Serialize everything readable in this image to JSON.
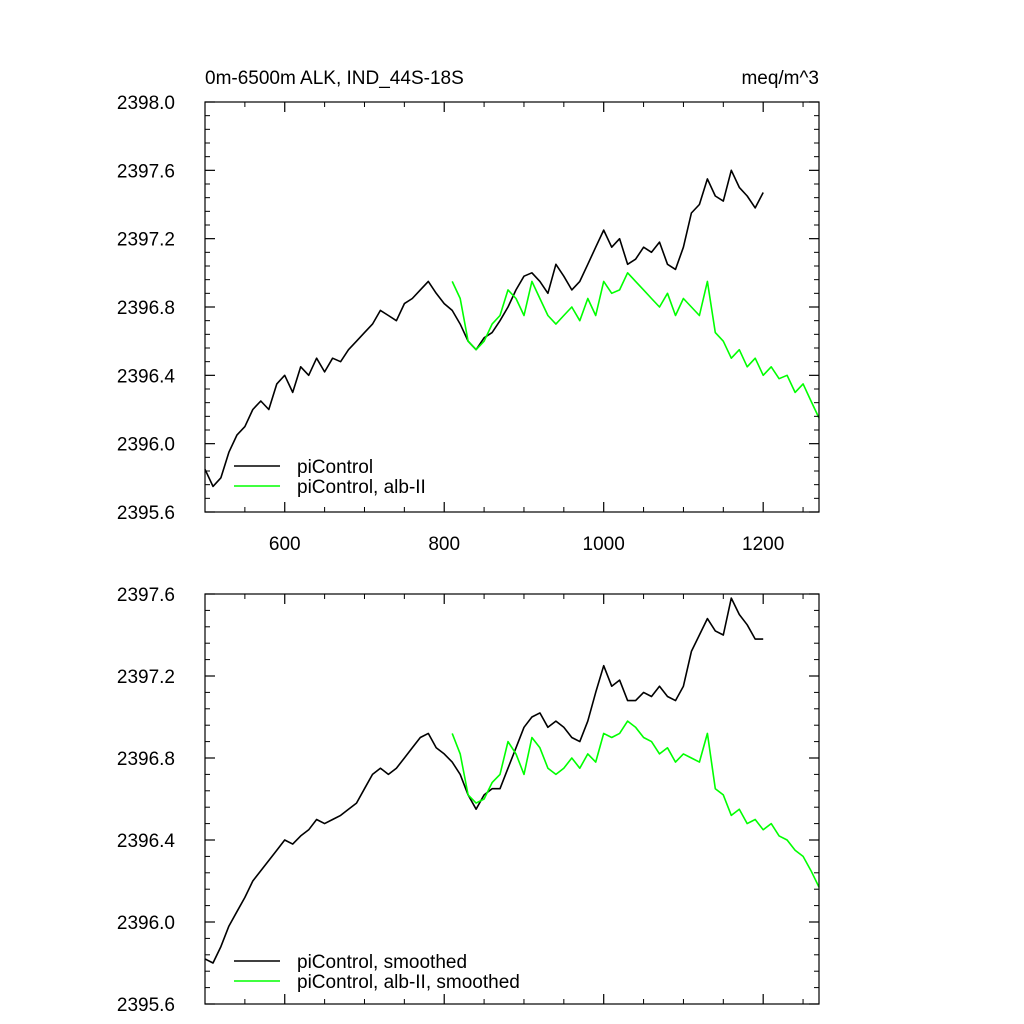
{
  "chart_data": [
    {
      "type": "line",
      "title": "0m-6500m ALK, IND_44S-18S",
      "units": "meq/m^3",
      "xlim": [
        500,
        1270
      ],
      "ylim": [
        2395.6,
        2398.0
      ],
      "xticks": [
        600,
        800,
        1000,
        1200
      ],
      "xtick_labels": [
        "600",
        "800",
        "1000",
        "1200"
      ],
      "yticks": [
        2395.6,
        2396.0,
        2396.4,
        2396.8,
        2397.2,
        2397.6,
        2398.0
      ],
      "ytick_labels": [
        "2395.6",
        "2396.0",
        "2396.4",
        "2396.8",
        "2397.2",
        "2397.6",
        "2398.0"
      ],
      "grid": false,
      "legend_position": "bottom-left",
      "series": [
        {
          "name": "piControl",
          "color": "#000000",
          "x": [
            500,
            510,
            520,
            530,
            540,
            550,
            560,
            570,
            580,
            590,
            600,
            610,
            620,
            630,
            640,
            650,
            660,
            670,
            680,
            690,
            700,
            710,
            720,
            730,
            740,
            750,
            760,
            770,
            780,
            790,
            800,
            810,
            820,
            830,
            840,
            850,
            860,
            870,
            880,
            890,
            900,
            910,
            920,
            930,
            940,
            950,
            960,
            970,
            980,
            990,
            1000,
            1010,
            1020,
            1030,
            1040,
            1050,
            1060,
            1070,
            1080,
            1090,
            1100,
            1110,
            1120,
            1130,
            1140,
            1150,
            1160,
            1170,
            1180,
            1190,
            1200
          ],
          "values": [
            2395.85,
            2395.75,
            2395.8,
            2395.95,
            2396.05,
            2396.1,
            2396.2,
            2396.25,
            2396.2,
            2396.35,
            2396.4,
            2396.3,
            2396.45,
            2396.4,
            2396.5,
            2396.42,
            2396.5,
            2396.48,
            2396.55,
            2396.6,
            2396.65,
            2396.7,
            2396.78,
            2396.75,
            2396.72,
            2396.82,
            2396.85,
            2396.9,
            2396.95,
            2396.88,
            2396.82,
            2396.78,
            2396.7,
            2396.6,
            2396.55,
            2396.62,
            2396.65,
            2396.72,
            2396.8,
            2396.9,
            2396.98,
            2397.0,
            2396.95,
            2396.88,
            2397.05,
            2396.98,
            2396.9,
            2396.95,
            2397.05,
            2397.15,
            2397.25,
            2397.15,
            2397.2,
            2397.05,
            2397.08,
            2397.15,
            2397.12,
            2397.18,
            2397.05,
            2397.02,
            2397.15,
            2397.35,
            2397.4,
            2397.55,
            2397.45,
            2397.42,
            2397.6,
            2397.5,
            2397.45,
            2397.38,
            2397.47
          ]
        },
        {
          "name": "piControl, alb-II",
          "color": "#00ff00",
          "x": [
            810,
            820,
            830,
            840,
            850,
            860,
            870,
            880,
            890,
            900,
            910,
            920,
            930,
            940,
            950,
            960,
            970,
            980,
            990,
            1000,
            1010,
            1020,
            1030,
            1040,
            1050,
            1060,
            1070,
            1080,
            1090,
            1100,
            1110,
            1120,
            1130,
            1140,
            1150,
            1160,
            1170,
            1180,
            1190,
            1200,
            1210,
            1220,
            1230,
            1240,
            1250,
            1260,
            1270
          ],
          "values": [
            2396.95,
            2396.85,
            2396.6,
            2396.55,
            2396.6,
            2396.7,
            2396.75,
            2396.9,
            2396.85,
            2396.75,
            2396.95,
            2396.85,
            2396.75,
            2396.7,
            2396.75,
            2396.8,
            2396.72,
            2396.85,
            2396.75,
            2396.95,
            2396.88,
            2396.9,
            2397.0,
            2396.95,
            2396.9,
            2396.85,
            2396.8,
            2396.88,
            2396.75,
            2396.85,
            2396.8,
            2396.75,
            2396.95,
            2396.65,
            2396.6,
            2396.5,
            2396.55,
            2396.45,
            2396.5,
            2396.4,
            2396.45,
            2396.38,
            2396.4,
            2396.3,
            2396.35,
            2396.25,
            2396.15
          ]
        }
      ]
    },
    {
      "type": "line",
      "xlim": [
        500,
        1270
      ],
      "ylim": [
        2395.6,
        2397.6
      ],
      "xticks": [
        600,
        800,
        1000,
        1200
      ],
      "yticks": [
        2395.6,
        2396.0,
        2396.4,
        2396.8,
        2397.2,
        2397.6
      ],
      "ytick_labels": [
        "2395.6",
        "2396.0",
        "2396.4",
        "2396.8",
        "2397.2",
        "2397.6"
      ],
      "grid": false,
      "legend_position": "bottom-left",
      "series": [
        {
          "name": "piControl, smoothed",
          "color": "#000000",
          "x": [
            500,
            510,
            520,
            530,
            540,
            550,
            560,
            570,
            580,
            590,
            600,
            610,
            620,
            630,
            640,
            650,
            660,
            670,
            680,
            690,
            700,
            710,
            720,
            730,
            740,
            750,
            760,
            770,
            780,
            790,
            800,
            810,
            820,
            830,
            840,
            850,
            860,
            870,
            880,
            890,
            900,
            910,
            920,
            930,
            940,
            950,
            960,
            970,
            980,
            990,
            1000,
            1010,
            1020,
            1030,
            1040,
            1050,
            1060,
            1070,
            1080,
            1090,
            1100,
            1110,
            1120,
            1130,
            1140,
            1150,
            1160,
            1170,
            1180,
            1190,
            1200
          ],
          "values": [
            2395.82,
            2395.8,
            2395.88,
            2395.98,
            2396.05,
            2396.12,
            2396.2,
            2396.25,
            2396.3,
            2396.35,
            2396.4,
            2396.38,
            2396.42,
            2396.45,
            2396.5,
            2396.48,
            2396.5,
            2396.52,
            2396.55,
            2396.58,
            2396.65,
            2396.72,
            2396.75,
            2396.72,
            2396.75,
            2396.8,
            2396.85,
            2396.9,
            2396.92,
            2396.85,
            2396.82,
            2396.78,
            2396.72,
            2396.62,
            2396.55,
            2396.62,
            2396.65,
            2396.65,
            2396.75,
            2396.85,
            2396.95,
            2397.0,
            2397.02,
            2396.95,
            2396.98,
            2396.95,
            2396.9,
            2396.88,
            2396.98,
            2397.12,
            2397.25,
            2397.15,
            2397.18,
            2397.08,
            2397.08,
            2397.12,
            2397.1,
            2397.15,
            2397.1,
            2397.08,
            2397.15,
            2397.32,
            2397.4,
            2397.48,
            2397.42,
            2397.4,
            2397.58,
            2397.5,
            2397.45,
            2397.38,
            2397.38
          ]
        },
        {
          "name": "piControl, alb-II, smoothed",
          "color": "#00ff00",
          "x": [
            810,
            820,
            830,
            840,
            850,
            860,
            870,
            880,
            890,
            900,
            910,
            920,
            930,
            940,
            950,
            960,
            970,
            980,
            990,
            1000,
            1010,
            1020,
            1030,
            1040,
            1050,
            1060,
            1070,
            1080,
            1090,
            1100,
            1110,
            1120,
            1130,
            1140,
            1150,
            1160,
            1170,
            1180,
            1190,
            1200,
            1210,
            1220,
            1230,
            1240,
            1250,
            1260,
            1270
          ],
          "values": [
            2396.92,
            2396.82,
            2396.62,
            2396.58,
            2396.6,
            2396.68,
            2396.72,
            2396.88,
            2396.82,
            2396.72,
            2396.9,
            2396.85,
            2396.75,
            2396.72,
            2396.75,
            2396.8,
            2396.75,
            2396.82,
            2396.78,
            2396.92,
            2396.9,
            2396.92,
            2396.98,
            2396.95,
            2396.9,
            2396.88,
            2396.82,
            2396.85,
            2396.78,
            2396.82,
            2396.8,
            2396.78,
            2396.92,
            2396.65,
            2396.62,
            2396.52,
            2396.55,
            2396.48,
            2396.5,
            2396.45,
            2396.48,
            2396.42,
            2396.4,
            2396.35,
            2396.32,
            2396.25,
            2396.17
          ]
        }
      ]
    }
  ]
}
